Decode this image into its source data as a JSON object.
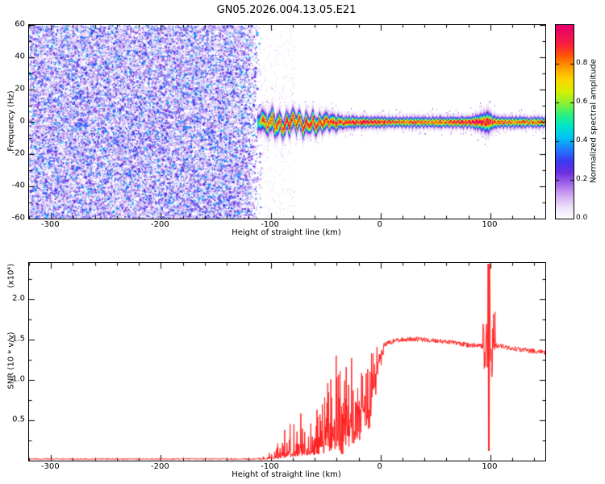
{
  "title": "GN05.2026.004.13.05.E21",
  "chart_data": [
    {
      "type": "heatmap",
      "title": "GN05.2026.004.13.05.E21",
      "xlabel": "Height of straight line (km)",
      "ylabel": "Frequency (Hz)",
      "xlim": [
        -320,
        150
      ],
      "ylim": [
        -60,
        60
      ],
      "xticks": [
        -300,
        -200,
        -100,
        0,
        100
      ],
      "yticks": [
        60,
        40,
        20,
        0,
        -20,
        -40,
        -60
      ],
      "grid": false,
      "colorbar": {
        "label": "Normalized spectral amplitude",
        "ticks": [
          "0.0",
          "0.2",
          "0.4",
          "0.6",
          "0.8"
        ],
        "tick_values": [
          0,
          0.2,
          0.4,
          0.6,
          0.8
        ],
        "range": [
          0,
          1
        ],
        "colormap_stops": [
          [
            0.0,
            "#ffffff"
          ],
          [
            0.06,
            "#eee2f9"
          ],
          [
            0.12,
            "#d2aaf2"
          ],
          [
            0.18,
            "#a468e8"
          ],
          [
            0.24,
            "#6b2fe0"
          ],
          [
            0.3,
            "#3a3af2"
          ],
          [
            0.36,
            "#1f7dff"
          ],
          [
            0.42,
            "#00c3f5"
          ],
          [
            0.48,
            "#00e6c8"
          ],
          [
            0.54,
            "#2df07d"
          ],
          [
            0.6,
            "#8ef032"
          ],
          [
            0.66,
            "#d8f000"
          ],
          [
            0.72,
            "#fdd500"
          ],
          [
            0.78,
            "#ffa000"
          ],
          [
            0.84,
            "#ff5a00"
          ],
          [
            0.9,
            "#fb1e3c"
          ],
          [
            1.0,
            "#e4006e"
          ]
        ]
      },
      "noise_region": {
        "x_range": [
          -320,
          -108
        ],
        "value_range": [
          0,
          0.42
        ],
        "description": "dense random purple speckle noise, no signal lock"
      },
      "signal_track": {
        "x_range": [
          -112,
          150
        ],
        "center_freq_hz": [
          [
            -112,
            -1
          ],
          [
            -107,
            2
          ],
          [
            -103,
            -3
          ],
          [
            -99,
            3
          ],
          [
            -96,
            -4
          ],
          [
            -92,
            1
          ],
          [
            -89,
            -6
          ],
          [
            -86,
            2
          ],
          [
            -83,
            -3
          ],
          [
            -80,
            4
          ],
          [
            -77,
            -2
          ],
          [
            -74,
            3
          ],
          [
            -71,
            -5
          ],
          [
            -68,
            1
          ],
          [
            -65,
            -3
          ],
          [
            -62,
            2
          ],
          [
            -59,
            -4
          ],
          [
            -56,
            1
          ],
          [
            -53,
            -2
          ],
          [
            -50,
            2
          ],
          [
            -47,
            -1
          ],
          [
            -44,
            1
          ],
          [
            -41,
            -1.5
          ],
          [
            -38,
            0.5
          ],
          [
            -35,
            -0.5
          ],
          [
            -30,
            0
          ],
          [
            150,
            0
          ]
        ],
        "sigma_hz": [
          [
            -112,
            3.0
          ],
          [
            -100,
            3.2
          ],
          [
            -80,
            3.0
          ],
          [
            -60,
            2.8
          ],
          [
            -40,
            2.2
          ],
          [
            -30,
            1.7
          ],
          [
            0,
            1.5
          ],
          [
            80,
            1.6
          ],
          [
            93,
            2.6
          ],
          [
            97,
            3.2
          ],
          [
            101,
            2.2
          ],
          [
            110,
            1.6
          ],
          [
            150,
            1.5
          ]
        ],
        "core_value": [
          [
            -112,
            0.4
          ],
          [
            -108,
            0.75
          ],
          [
            -98,
            0.82
          ],
          [
            -88,
            0.86
          ],
          [
            -78,
            0.82
          ],
          [
            -68,
            0.86
          ],
          [
            -58,
            0.82
          ],
          [
            -48,
            0.85
          ],
          [
            -38,
            0.83
          ],
          [
            -28,
            0.86
          ],
          [
            -21,
            0.93
          ],
          [
            -14,
            0.96
          ],
          [
            -7,
            0.93
          ],
          [
            -2,
            0.87
          ],
          [
            5,
            0.83
          ],
          [
            15,
            0.8
          ],
          [
            30,
            0.82
          ],
          [
            45,
            0.8
          ],
          [
            60,
            0.82
          ],
          [
            72,
            0.9
          ],
          [
            80,
            0.95
          ],
          [
            88,
            0.96
          ],
          [
            95,
            0.9
          ],
          [
            102,
            0.84
          ],
          [
            115,
            0.8
          ],
          [
            130,
            0.78
          ],
          [
            140,
            0.8
          ],
          [
            150,
            0.79
          ]
        ],
        "high_amplitude_segments_km": [
          [
            -21,
            -7
          ],
          [
            76,
            92
          ]
        ]
      }
    },
    {
      "type": "line",
      "xlabel": "Height of straight line (km)",
      "ylabel": "SNR (10 * v/v)",
      "y_scale_label": "(x10⁴)",
      "color": "#ff2020",
      "xlim": [
        -320,
        150
      ],
      "ylim": [
        0,
        2.45
      ],
      "xticks": [
        -300,
        -200,
        -100,
        0,
        100
      ],
      "yticks": [
        "0.5",
        "1.0",
        "1.5",
        "2.0"
      ],
      "ytick_values": [
        0.5,
        1.0,
        1.5,
        2.0
      ],
      "envelope": [
        [
          -320,
          0.02
        ],
        [
          -112,
          0.02
        ],
        [
          -105,
          0.06
        ],
        [
          -98,
          0.12
        ],
        [
          -92,
          0.3
        ],
        [
          -86,
          0.5
        ],
        [
          -80,
          0.55
        ],
        [
          -74,
          0.75
        ],
        [
          -68,
          0.6
        ],
        [
          -62,
          0.5
        ],
        [
          -56,
          0.75
        ],
        [
          -50,
          0.9
        ],
        [
          -46,
          1.1
        ],
        [
          -42,
          1.35
        ],
        [
          -38,
          1.3
        ],
        [
          -34,
          0.9
        ],
        [
          -31,
          1.2
        ],
        [
          -27,
          1.3
        ],
        [
          -23,
          1.35
        ],
        [
          -19,
          1.3
        ],
        [
          -15,
          1.35
        ],
        [
          -11,
          1.3
        ],
        [
          -7,
          1.38
        ],
        [
          -3,
          1.42
        ],
        [
          1,
          1.45
        ],
        [
          6,
          1.48
        ],
        [
          12,
          1.51
        ],
        [
          20,
          1.53
        ],
        [
          30,
          1.54
        ],
        [
          45,
          1.52
        ],
        [
          60,
          1.5
        ],
        [
          72,
          1.48
        ],
        [
          82,
          1.46
        ],
        [
          90,
          1.45
        ],
        [
          96,
          1.44
        ],
        [
          104,
          1.46
        ],
        [
          112,
          1.44
        ],
        [
          125,
          1.41
        ],
        [
          138,
          1.39
        ],
        [
          150,
          1.37
        ]
      ],
      "floor": [
        [
          -320,
          0.01
        ],
        [
          -112,
          0.01
        ],
        [
          -100,
          0.02
        ],
        [
          -90,
          0.03
        ],
        [
          -80,
          0.05
        ],
        [
          -70,
          0.06
        ],
        [
          -60,
          0.07
        ],
        [
          -52,
          0.09
        ],
        [
          -46,
          0.12
        ],
        [
          -40,
          0.1
        ],
        [
          -35,
          0.04
        ],
        [
          -30,
          0.1
        ],
        [
          -24,
          0.18
        ],
        [
          -18,
          0.22
        ],
        [
          -12,
          0.28
        ],
        [
          -8,
          0.45
        ],
        [
          -4,
          0.8
        ],
        [
          0,
          1.1
        ],
        [
          3,
          1.3
        ],
        [
          10,
          1.4
        ],
        [
          150,
          1.3
        ]
      ],
      "noise_exponent": [
        [
          -110,
          2.2
        ],
        [
          -60,
          1.6
        ],
        [
          -40,
          1.0
        ],
        [
          -20,
          0.8
        ],
        [
          3,
          0.5
        ]
      ],
      "spike": {
        "x0": 97.6,
        "x1": 99.4,
        "peak": 2.44,
        "dip": 0.12
      }
    }
  ]
}
